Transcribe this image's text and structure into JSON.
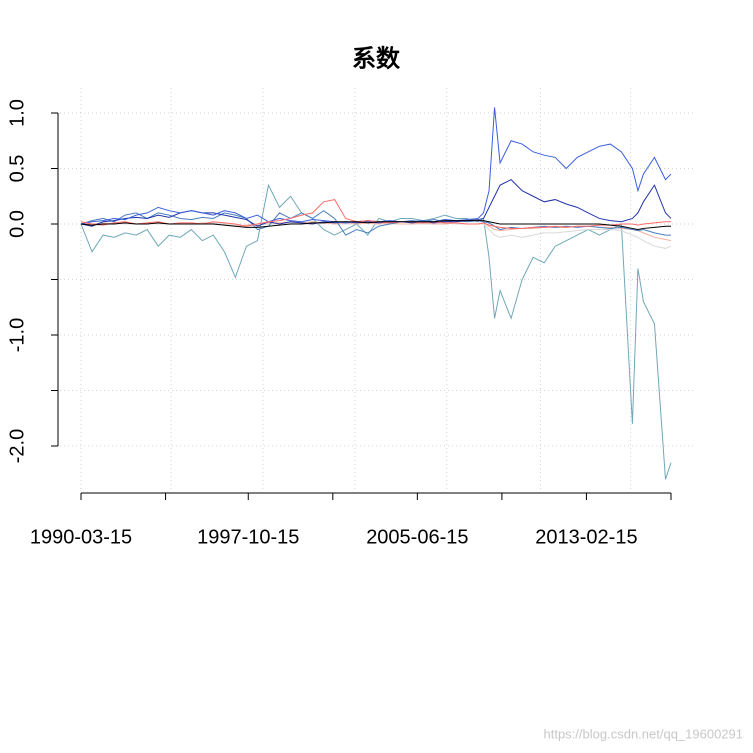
{
  "chart_data": {
    "type": "line",
    "title": "系数",
    "x": [
      "1990-03-15",
      "1990-09-15",
      "1991-03-15",
      "1991-09-15",
      "1992-03-15",
      "1992-09-15",
      "1993-03-15",
      "1993-09-15",
      "1994-03-15",
      "1994-09-15",
      "1995-03-15",
      "1995-09-15",
      "1996-03-15",
      "1996-09-15",
      "1997-03-15",
      "1997-09-15",
      "1998-03-15",
      "1998-09-15",
      "1999-03-15",
      "1999-09-15",
      "2000-03-15",
      "2000-09-15",
      "2001-03-15",
      "2001-09-15",
      "2002-03-15",
      "2002-09-15",
      "2003-03-15",
      "2003-09-15",
      "2004-03-15",
      "2004-09-15",
      "2005-03-15",
      "2005-09-15",
      "2006-03-15",
      "2006-09-15",
      "2007-03-15",
      "2007-09-15",
      "2008-03-15",
      "2008-06-15",
      "2008-09-15",
      "2008-12-15",
      "2009-03-15",
      "2009-09-15",
      "2010-03-15",
      "2010-09-15",
      "2011-03-15",
      "2011-09-15",
      "2012-03-15",
      "2012-09-15",
      "2013-03-15",
      "2013-09-15",
      "2014-03-15",
      "2014-09-15",
      "2015-03-15",
      "2015-06-15",
      "2015-09-15",
      "2016-03-15",
      "2016-09-15",
      "2016-12-15"
    ],
    "series": [
      {
        "color": "#6fa8b8",
        "values": [
          0,
          -0.25,
          -0.1,
          -0.12,
          -0.08,
          -0.1,
          -0.05,
          -0.2,
          -0.1,
          -0.12,
          -0.05,
          -0.15,
          -0.1,
          -0.25,
          -0.48,
          -0.2,
          -0.15,
          0.35,
          0.15,
          0.25,
          0.1,
          0.05,
          -0.05,
          -0.1,
          -0.05,
          0,
          -0.1,
          0.05,
          0.02,
          0.05,
          0.05,
          0.03,
          0.05,
          0.08,
          0.05,
          0.05,
          0.02,
          0.05,
          -0.3,
          -0.85,
          -0.6,
          -0.85,
          -0.5,
          -0.3,
          -0.35,
          -0.2,
          -0.15,
          -0.1,
          -0.05,
          -0.1,
          -0.05,
          0,
          -1.8,
          -0.4,
          -0.7,
          -0.9,
          -2.3,
          -2.15
        ]
      },
      {
        "color": "#d9d9d9",
        "values": [
          0,
          0,
          0,
          0.01,
          0,
          0,
          0.01,
          0,
          0,
          0,
          0,
          0,
          0.01,
          0,
          -0.01,
          -0.02,
          -0.01,
          0,
          0,
          0.01,
          0,
          0,
          0.01,
          0,
          0,
          0,
          0.01,
          0,
          0,
          0,
          0,
          0,
          0,
          0.01,
          0,
          0,
          0,
          0,
          -0.05,
          -0.1,
          -0.12,
          -0.1,
          -0.12,
          -0.1,
          -0.08,
          -0.08,
          -0.07,
          -0.06,
          -0.05,
          -0.05,
          -0.05,
          -0.06,
          -0.1,
          -0.12,
          -0.15,
          -0.2,
          -0.22,
          -0.2
        ]
      },
      {
        "color": "#f5b0a0",
        "values": [
          0,
          0,
          0.01,
          0,
          0.01,
          0,
          0,
          0.01,
          0,
          0,
          0,
          0.01,
          0,
          -0.01,
          -0.02,
          -0.01,
          0,
          0.01,
          0.01,
          0.02,
          0.01,
          0.02,
          0.01,
          0,
          0.01,
          0,
          0.01,
          0,
          0.01,
          0,
          0,
          0.01,
          0,
          0,
          0.01,
          0,
          0,
          0.01,
          -0.02,
          -0.05,
          -0.06,
          -0.05,
          -0.04,
          -0.04,
          -0.03,
          -0.03,
          -0.03,
          -0.02,
          -0.02,
          -0.03,
          -0.03,
          -0.04,
          -0.05,
          -0.06,
          -0.08,
          -0.12,
          -0.14,
          -0.15
        ]
      },
      {
        "color": "#4a7fc0",
        "values": [
          0,
          0.03,
          0.05,
          0.02,
          0.08,
          0.1,
          0.05,
          0.1,
          0.08,
          0.05,
          0.04,
          0.06,
          0.05,
          0.1,
          0.08,
          0.05,
          -0.05,
          -0.02,
          0.1,
          0.05,
          0.1,
          0.05,
          0.12,
          0.05,
          -0.1,
          -0.05,
          -0.08,
          -0.02,
          0,
          0.02,
          0.03,
          0.02,
          0.04,
          0.02,
          0.03,
          0.02,
          0.03,
          0.02,
          0.01,
          -0.02,
          -0.05,
          -0.03,
          -0.04,
          -0.03,
          -0.02,
          -0.03,
          -0.02,
          -0.03,
          -0.02,
          -0.03,
          -0.04,
          -0.03,
          -0.05,
          -0.06,
          -0.05,
          -0.08,
          -0.1,
          -0.1
        ]
      },
      {
        "color": "#2233aa",
        "values": [
          0,
          -0.02,
          0.02,
          0.03,
          0.05,
          0.06,
          0.05,
          0.08,
          0.06,
          0.1,
          0.12,
          0.1,
          0.1,
          0.08,
          0.06,
          0.04,
          -0.02,
          0.02,
          0,
          0.02,
          0.01,
          0,
          0.02,
          0.01,
          0.02,
          0.01,
          0.02,
          0.01,
          0.02,
          0.02,
          0.01,
          0.02,
          0.01,
          0.02,
          0.02,
          0.03,
          0.04,
          0.05,
          0.15,
          0.25,
          0.35,
          0.4,
          0.3,
          0.25,
          0.2,
          0.22,
          0.18,
          0.15,
          0.1,
          0.05,
          0.03,
          0.02,
          0.05,
          0.1,
          0.2,
          0.35,
          0.1,
          0.05
        ]
      },
      {
        "color": "#3a5fdd",
        "values": [
          0,
          0.02,
          0.03,
          0.05,
          0.04,
          0.08,
          0.1,
          0.15,
          0.12,
          0.1,
          0.12,
          0.1,
          0.08,
          0.12,
          0.1,
          0.05,
          0.08,
          0.02,
          0.05,
          0.03,
          0.02,
          0.04,
          0.03,
          0.02,
          0.01,
          0.02,
          0.03,
          0.02,
          0.03,
          0.02,
          0.02,
          0.03,
          0.02,
          0.04,
          0.03,
          0.04,
          0.05,
          0.1,
          0.3,
          1.05,
          0.55,
          0.75,
          0.72,
          0.65,
          0.62,
          0.6,
          0.5,
          0.6,
          0.65,
          0.7,
          0.72,
          0.65,
          0.5,
          0.3,
          0.45,
          0.6,
          0.4,
          0.45
        ]
      },
      {
        "color": "#ff6a6a",
        "values": [
          0.02,
          0,
          -0.01,
          0.01,
          0.02,
          0,
          0.01,
          0.02,
          0,
          0.01,
          0.01,
          0,
          0.02,
          0.01,
          0,
          -0.02,
          0,
          0.02,
          0.03,
          0.05,
          0.08,
          0.1,
          0.2,
          0.22,
          0.05,
          0.02,
          0.03,
          0.02,
          0.01,
          0.02,
          0.02,
          0.01,
          0.02,
          0.01,
          0.01,
          0,
          0,
          0.01,
          -0.01,
          -0.02,
          -0.03,
          -0.04,
          -0.04,
          -0.03,
          -0.03,
          -0.02,
          -0.03,
          -0.02,
          -0.02,
          -0.01,
          -0.01,
          0,
          0,
          -0.01,
          0,
          0.01,
          0.02,
          0.02
        ]
      },
      {
        "color": "#000000",
        "values": [
          0,
          -0.01,
          0,
          0,
          0.01,
          0,
          0,
          0.01,
          0,
          0,
          0,
          0,
          0,
          -0.01,
          -0.02,
          -0.03,
          -0.03,
          -0.02,
          -0.01,
          0,
          0,
          0.01,
          0.01,
          0.02,
          0.02,
          0.02,
          0.01,
          0.02,
          0.02,
          0.02,
          0.02,
          0.02,
          0.02,
          0.03,
          0.03,
          0.03,
          0.03,
          0.03,
          0.02,
          0.01,
          0,
          0,
          0,
          0,
          0,
          0,
          0,
          0,
          0,
          0,
          -0.01,
          -0.02,
          -0.04,
          -0.05,
          -0.04,
          -0.03,
          -0.02,
          -0.02
        ]
      }
    ],
    "xlim": [
      "1990-03-15",
      "2016-12-15"
    ],
    "xticks": [
      "1990-03-15",
      {
        "value": "1994-01-15",
        "label": null
      },
      "1997-10-15",
      {
        "value": "2001-08-15",
        "label": null
      },
      "2005-06-15",
      {
        "value": "2009-04-15",
        "label": null
      },
      "2013-02-15",
      {
        "value": "2016-12-15",
        "label": null
      }
    ],
    "xgrid": [
      "1990-03-15",
      "1994-04-15",
      "1998-06-15",
      "2002-08-15",
      "2006-10-15",
      "2011-01-15",
      "2015-02-15"
    ],
    "ylim": [
      -2,
      1
    ],
    "yticks": [
      {
        "value": 1,
        "label": "1.0"
      },
      {
        "value": 0.5,
        "label": "0.5"
      },
      {
        "value": 0,
        "label": "0.0"
      },
      {
        "value": -0.5,
        "label": null
      },
      {
        "value": -1,
        "label": "-1.0"
      },
      {
        "value": -1.5,
        "label": null
      },
      {
        "value": -2,
        "label": "-2.0"
      }
    ],
    "grid": true,
    "watermark": "https://blog.csdn.net/qq_19600291"
  }
}
